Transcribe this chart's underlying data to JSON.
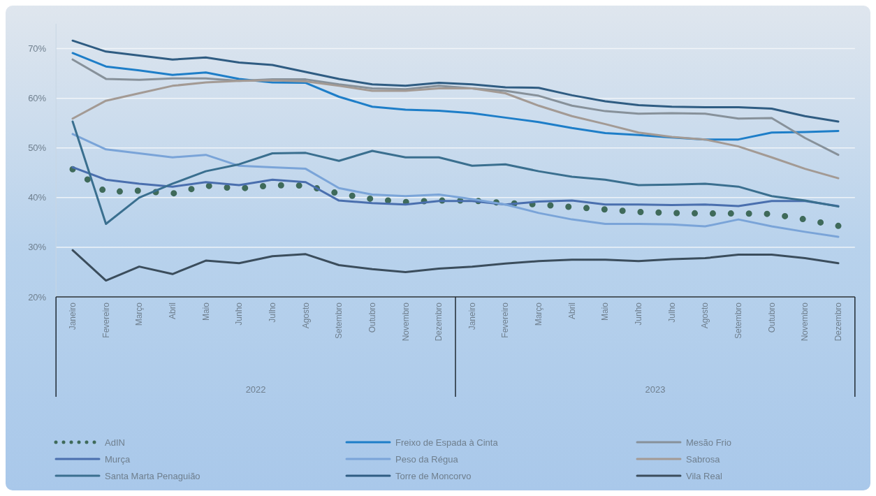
{
  "chart_data": {
    "type": "line",
    "categories": [
      "Janeiro",
      "Fevereiro",
      "Março",
      "Abril",
      "Maio",
      "Junho",
      "Julho",
      "Agosto",
      "Setembro",
      "Outubro",
      "Novembro",
      "Dezembro",
      "Janeiro",
      "Fevereiro",
      "Março",
      "Abril",
      "Maio",
      "Junho",
      "Julho",
      "Agosto",
      "Setembro",
      "Outubro",
      "Novembro",
      "Dezembro"
    ],
    "annotations": [
      "2022",
      "2023"
    ],
    "ylim": [
      20,
      75
    ],
    "yticks": [
      {
        "value": 20,
        "label": "20%"
      },
      {
        "value": 30,
        "label": "30%"
      },
      {
        "value": 40,
        "label": "40%"
      },
      {
        "value": 50,
        "label": "50%"
      },
      {
        "value": 60,
        "label": "60%"
      },
      {
        "value": 70,
        "label": "70%"
      }
    ],
    "grid": "y",
    "legend": "bottom",
    "marker": "none",
    "series": [
      {
        "name": "AdIN",
        "color": "#3f6a5a",
        "line_style": "dotted",
        "values": [
          45.7,
          41.1,
          41.4,
          40.8,
          42.4,
          41.8,
          42.5,
          42.4,
          40.8,
          39.7,
          39.1,
          39.4,
          39.4,
          38.9,
          38.6,
          38.1,
          37.6,
          37.1,
          36.9,
          36.8,
          36.8,
          36.7,
          35.6,
          34.3
        ]
      },
      {
        "name": "Freixo de Espada à Cinta",
        "color": "#1e7ec8",
        "line_style": "solid",
        "values": [
          69.1,
          66.4,
          65.6,
          64.7,
          65.2,
          63.9,
          63.2,
          63.1,
          60.3,
          58.3,
          57.7,
          57.5,
          57.0,
          56.1,
          55.2,
          54.0,
          53.0,
          52.6,
          52.1,
          51.7,
          51.7,
          53.1,
          53.2,
          53.4
        ]
      },
      {
        "name": "Mesão Frio",
        "color": "#87919a",
        "line_style": "solid",
        "values": [
          67.8,
          63.9,
          63.7,
          64.0,
          64.0,
          63.5,
          63.8,
          63.8,
          62.8,
          62.0,
          61.8,
          62.5,
          62.0,
          61.5,
          60.5,
          58.5,
          57.4,
          56.9,
          57.0,
          56.9,
          55.9,
          56.0,
          52.0,
          48.6
        ]
      },
      {
        "name": "Murça",
        "color": "#4a6fae",
        "line_style": "solid",
        "values": [
          46.1,
          43.6,
          42.8,
          42.2,
          43.1,
          42.5,
          43.6,
          43.1,
          39.4,
          38.9,
          38.6,
          39.3,
          39.3,
          38.6,
          39.2,
          39.4,
          38.6,
          38.6,
          38.5,
          38.6,
          38.3,
          39.3,
          39.3,
          38.3
        ]
      },
      {
        "name": "Peso da Régua",
        "color": "#7aa4d8",
        "line_style": "solid",
        "values": [
          52.8,
          49.7,
          48.9,
          48.1,
          48.6,
          46.4,
          46.1,
          45.8,
          41.9,
          40.6,
          40.3,
          40.6,
          39.7,
          38.6,
          36.9,
          35.6,
          34.7,
          34.7,
          34.6,
          34.2,
          35.6,
          34.2,
          33.1,
          32.1
        ]
      },
      {
        "name": "Sabrosa",
        "color": "#a39a94",
        "line_style": "solid",
        "values": [
          55.9,
          59.5,
          61.0,
          62.5,
          63.2,
          63.5,
          63.6,
          63.4,
          62.5,
          61.5,
          61.5,
          62.0,
          62.0,
          61.0,
          58.5,
          56.4,
          54.8,
          53.1,
          52.2,
          51.7,
          50.3,
          48.1,
          45.8,
          43.9
        ]
      },
      {
        "name": "Santa Marta Penaguião",
        "color": "#3a6f8f",
        "line_style": "solid",
        "values": [
          55.3,
          34.7,
          40.0,
          42.8,
          45.3,
          46.7,
          48.9,
          49.0,
          47.4,
          49.4,
          48.1,
          48.1,
          46.4,
          46.7,
          45.3,
          44.2,
          43.6,
          42.5,
          42.6,
          42.8,
          42.2,
          40.3,
          39.4,
          38.2
        ]
      },
      {
        "name": "Torre de Moncorvo",
        "color": "#2f5c82",
        "line_style": "solid",
        "values": [
          71.6,
          69.4,
          68.6,
          67.8,
          68.2,
          67.2,
          66.7,
          65.3,
          63.9,
          62.8,
          62.5,
          63.1,
          62.8,
          62.2,
          62.1,
          60.6,
          59.4,
          58.6,
          58.3,
          58.2,
          58.2,
          57.9,
          56.4,
          55.3
        ]
      },
      {
        "name": "Vila Real",
        "color": "#3b4d5c",
        "line_style": "solid",
        "values": [
          29.4,
          23.3,
          26.1,
          24.6,
          27.3,
          26.8,
          28.2,
          28.6,
          26.4,
          25.6,
          25.0,
          25.7,
          26.1,
          26.7,
          27.2,
          27.5,
          27.5,
          27.2,
          27.6,
          27.8,
          28.5,
          28.5,
          27.8,
          26.8
        ]
      }
    ]
  }
}
